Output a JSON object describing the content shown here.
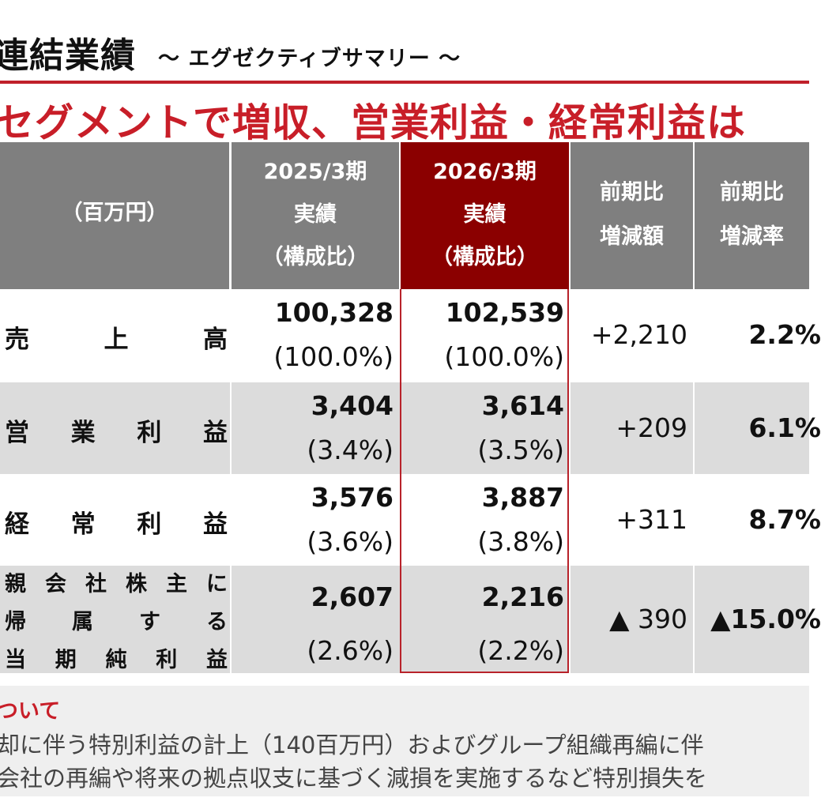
{
  "header": {
    "title": "連結業績",
    "subtitle": "～ エグゼクティブサマリー ～",
    "headline": "セグメントで増収、営業利益・経常利益は"
  },
  "colors": {
    "accent": "#c81e28",
    "header_gray": "#7f7f7f",
    "highlight": "#8b0000",
    "row_stripe": "#dcdcdc"
  },
  "table": {
    "unit": "（百万円）",
    "columns": [
      {
        "line1": "2025/3期",
        "line2": "実績",
        "line3": "（構成比）"
      },
      {
        "line1": "2026/3期",
        "line2": "実績",
        "line3": "（構成比）"
      },
      {
        "line1": "前期比",
        "line2": "増減額"
      },
      {
        "line1": "前期比",
        "line2": "増減率"
      }
    ],
    "rows": [
      {
        "label": [
          "売",
          "上",
          "高"
        ],
        "prev": "100,328",
        "prev_pct": "(100.0%)",
        "curr": "102,539",
        "curr_pct": "(100.0%)",
        "diff": "+2,210",
        "rate": "2.2%"
      },
      {
        "label": [
          "営",
          "業",
          "利",
          "益"
        ],
        "prev": "3,404",
        "prev_pct": "(3.4%)",
        "curr": "3,614",
        "curr_pct": "(3.5%)",
        "diff": "+209",
        "rate": "6.1%"
      },
      {
        "label": [
          "経",
          "常",
          "利",
          "益"
        ],
        "prev": "3,576",
        "prev_pct": "(3.6%)",
        "curr": "3,887",
        "curr_pct": "(3.8%)",
        "diff": "+311",
        "rate": "8.7%"
      },
      {
        "label_lines": [
          [
            "親",
            "会",
            "社",
            "株",
            "主",
            "に"
          ],
          [
            "帰",
            "属",
            "す",
            "る"
          ],
          [
            "当",
            "期",
            "純",
            "利",
            "益"
          ]
        ],
        "prev": "2,607",
        "prev_pct": "(2.6%)",
        "curr": "2,216",
        "curr_pct": "(2.2%)",
        "diff": "▲ 390",
        "rate": "▲15.0%"
      }
    ]
  },
  "note": {
    "title": "ついて",
    "line1": "却に伴う特別利益の計上（140百万円）およびグループ組織再編に伴",
    "line2": "会社の再編や将来の拠点収支に基づく減損を実施するなど特別損失を"
  }
}
